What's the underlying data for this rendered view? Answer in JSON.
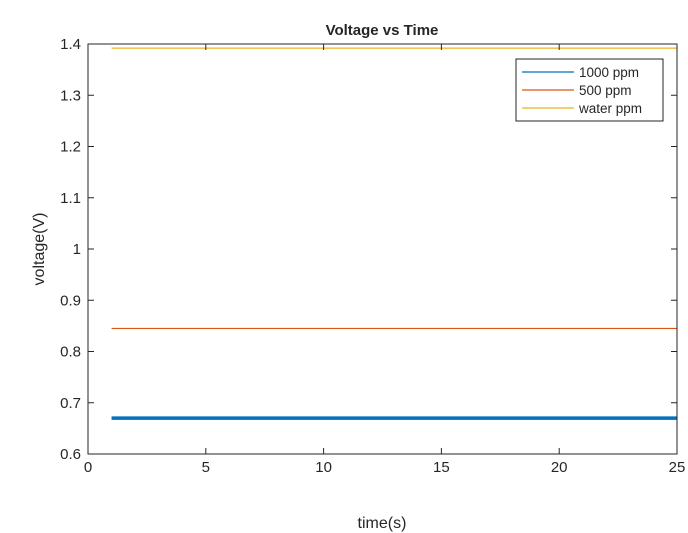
{
  "chart_data": {
    "type": "line",
    "title": "Voltage vs Time",
    "xlabel": "time(s)",
    "ylabel": "voltage(V)",
    "xlim": [
      0,
      25
    ],
    "ylim": [
      0.6,
      1.4
    ],
    "xticks": [
      0,
      5,
      10,
      15,
      20,
      25
    ],
    "yticks": [
      0.6,
      0.7,
      0.8,
      0.9,
      1,
      1.1,
      1.2,
      1.3,
      1.4
    ],
    "xtick_labels": [
      "0",
      "5",
      "10",
      "15",
      "20",
      "25"
    ],
    "ytick_labels": [
      "0.6",
      "0.7",
      "0.8",
      "0.9",
      "1",
      "1.1",
      "1.2",
      "1.3",
      "1.4"
    ],
    "grid": false,
    "legend_position": "top-right",
    "series": [
      {
        "name": "1000 ppm",
        "color": "#0072BD",
        "emphasis": "thick",
        "x": [
          1,
          25
        ],
        "y": [
          0.67,
          0.67
        ]
      },
      {
        "name": "500 ppm",
        "color": "#D95319",
        "x": [
          1,
          25
        ],
        "y": [
          0.845,
          0.845
        ]
      },
      {
        "name": "water ppm",
        "color": "#EDB120",
        "x": [
          1,
          25
        ],
        "y": [
          1.392,
          1.392
        ]
      }
    ]
  }
}
